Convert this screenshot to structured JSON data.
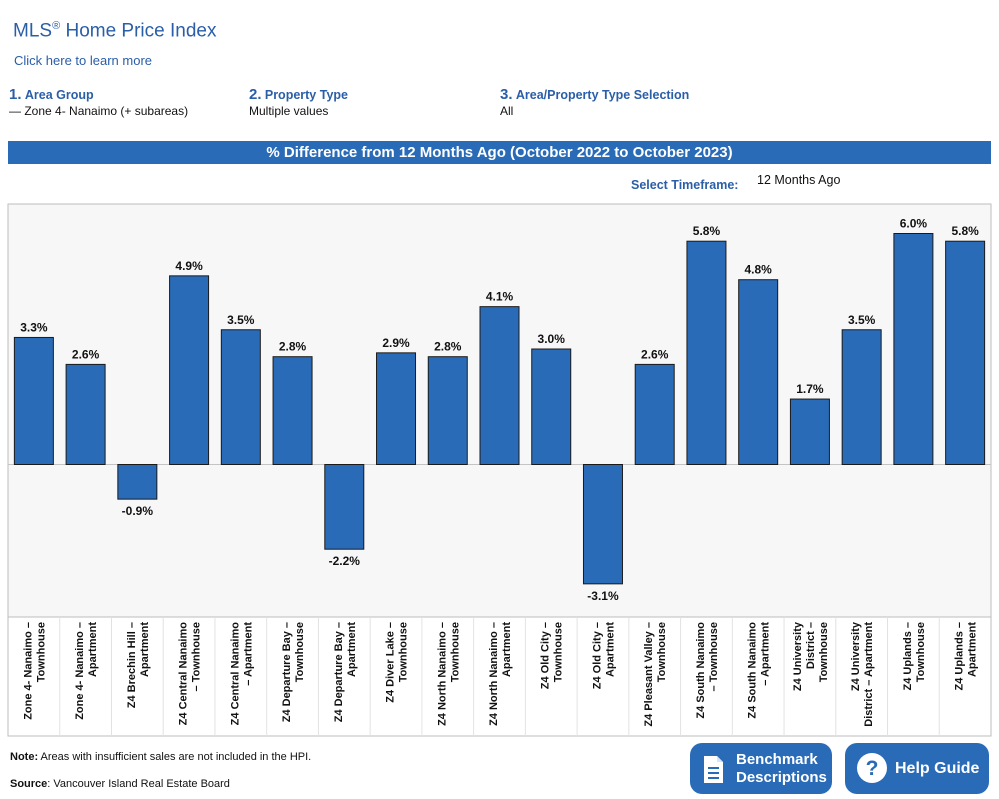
{
  "header": {
    "title": "MLS",
    "title_mark": "®",
    "title_rest": " Home Price Index",
    "learn_link": "Click here to learn more"
  },
  "filters": [
    {
      "num": "1.",
      "label": "Area Group",
      "value": "— Zone 4- Nanaimo (+ subareas)"
    },
    {
      "num": "2.",
      "label": "Property Type",
      "value": "Multiple values"
    },
    {
      "num": "3.",
      "label": "Area/Property Type Selection",
      "value": "All"
    }
  ],
  "banner": "% Difference from 12 Months Ago (October 2022 to October 2023)",
  "timeframe": {
    "label": "Select Timeframe:",
    "value": "12 Months Ago"
  },
  "chart_data": {
    "type": "bar",
    "title": "% Difference from 12 Months Ago (October 2022 to October 2023)",
    "categories": [
      "Zone 4- Nanaimo – Townhouse",
      "Zone 4- Nanaimo – Apartment",
      "Z4 Brechin Hill – Apartment",
      "Z4 Central Nanaimo – Townhouse",
      "Z4 Central Nanaimo – Apartment",
      "Z4 Departure Bay – Townhouse",
      "Z4 Departure Bay – Apartment",
      "Z4 Diver Lake – Townhouse",
      "Z4 North Nanaimo – Townhouse",
      "Z4 North Nanaimo – Apartment",
      "Z4 Old City – Townhouse",
      "Z4 Old City – Apartment",
      "Z4 Pleasant Valley – Townhouse",
      "Z4 South Nanaimo – Townhouse",
      "Z4 South Nanaimo – Apartment",
      "Z4 University District – Townhouse",
      "Z4 University District – Apartment",
      "Z4 Uplands – Townhouse",
      "Z4 Uplands – Apartment"
    ],
    "tick_lines": [
      [
        "Zone 4- Nanaimo –",
        "Townhouse"
      ],
      [
        "Zone 4- Nanaimo –",
        "Apartment"
      ],
      [
        "Z4 Brechin Hill –",
        "Apartment"
      ],
      [
        "Z4 Central Nanaimo",
        "– Townhouse"
      ],
      [
        "Z4 Central Nanaimo",
        "– Apartment"
      ],
      [
        "Z4 Departure Bay –",
        "Townhouse"
      ],
      [
        "Z4 Departure Bay –",
        "Apartment"
      ],
      [
        "Z4 Diver Lake –",
        "Townhouse"
      ],
      [
        "Z4 North Nanaimo –",
        "Townhouse"
      ],
      [
        "Z4 North Nanaimo –",
        "Apartment"
      ],
      [
        "Z4 Old City –",
        "Townhouse"
      ],
      [
        "Z4 Old City –",
        "Apartment"
      ],
      [
        "Z4 Pleasant Valley –",
        "Townhouse"
      ],
      [
        "Z4 South Nanaimo",
        "– Townhouse"
      ],
      [
        "Z4 South Nanaimo",
        "– Apartment"
      ],
      [
        "Z4 University",
        "District –",
        "Townhouse"
      ],
      [
        "Z4 University",
        "District – Apartment"
      ],
      [
        "Z4 Uplands –",
        "Townhouse"
      ],
      [
        "Z4 Uplands –",
        "Apartment"
      ]
    ],
    "values": [
      3.3,
      2.6,
      -0.9,
      4.9,
      3.5,
      2.8,
      -2.2,
      2.9,
      2.8,
      4.1,
      3.0,
      -3.1,
      2.6,
      5.8,
      4.8,
      1.7,
      3.5,
      6.0,
      5.8
    ],
    "labels": [
      "3.3%",
      "2.6%",
      "-0.9%",
      "4.9%",
      "3.5%",
      "2.8%",
      "-2.2%",
      "2.9%",
      "2.8%",
      "4.1%",
      "3.0%",
      "-3.1%",
      "2.6%",
      "5.8%",
      "4.8%",
      "1.7%",
      "3.5%",
      "6.0%",
      "5.8%"
    ],
    "ylim": [
      -3.9,
      6.9
    ],
    "bar_color": "#2a6bb8",
    "grid": false
  },
  "note": {
    "bold": "Note:",
    "text": " Areas with insufficient sales are not included in the HPI."
  },
  "source": {
    "bold": "Source",
    "text": ": Vancouver Island Real Estate Board"
  },
  "buttons": {
    "benchmark_line1": "Benchmark",
    "benchmark_line2": "Descriptions",
    "help": "Help Guide"
  }
}
